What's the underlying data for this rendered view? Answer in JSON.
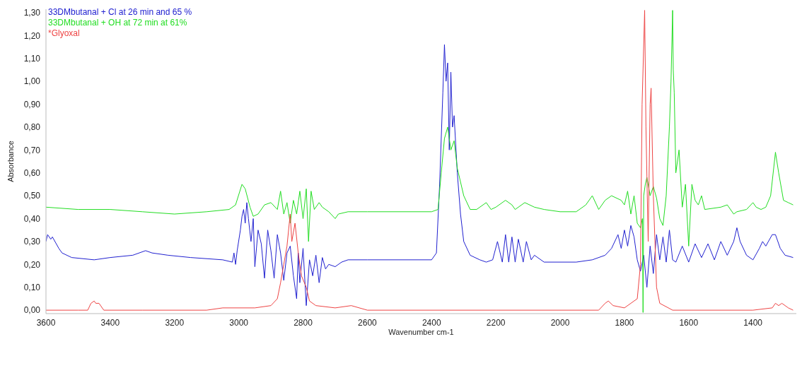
{
  "chart_data": {
    "type": "line",
    "xlabel": "Wavenumber cm-1",
    "ylabel": "Absorbance",
    "legend": "top left",
    "grid": false,
    "marker": "none",
    "line_style": "solid",
    "xlim": [
      3600,
      1265
    ],
    "xticks": [
      3600,
      3400,
      3200,
      3000,
      2800,
      2600,
      2400,
      2200,
      2000,
      1800,
      1600,
      1400
    ],
    "ylim": [
      -0.015,
      1.315
    ],
    "yticks": [
      {
        "value": 0,
        "label": "0,00"
      },
      {
        "value": 0.1,
        "label": "0,10"
      },
      {
        "value": 0.2,
        "label": "0,20"
      },
      {
        "value": 0.3,
        "label": "0,30"
      },
      {
        "value": 0.4,
        "label": "0,40"
      },
      {
        "value": 0.5,
        "label": "0,50"
      },
      {
        "value": 0.6,
        "label": "0,60"
      },
      {
        "value": 0.7,
        "label": "0,70"
      },
      {
        "value": 0.8,
        "label": "0,80"
      },
      {
        "value": 0.9,
        "label": "0,90"
      },
      {
        "value": 1.0,
        "label": "1,00"
      },
      {
        "value": 1.1,
        "label": "1,10"
      },
      {
        "value": 1.2,
        "label": "1,20"
      },
      {
        "value": 1.3,
        "label": "1,30"
      }
    ],
    "series": [
      {
        "name": "33DMbutanal + Cl at 26 min and 65 %",
        "color": "#2020d0",
        "x": [
          3600,
          3595,
          3585,
          3580,
          3560,
          3550,
          3520,
          3450,
          3400,
          3330,
          3290,
          3270,
          3220,
          3150,
          3050,
          3020,
          3015,
          3010,
          3005,
          2995,
          2990,
          2985,
          2980,
          2975,
          2970,
          2962,
          2955,
          2950,
          2940,
          2930,
          2920,
          2910,
          2900,
          2890,
          2880,
          2870,
          2860,
          2850,
          2840,
          2830,
          2820,
          2815,
          2810,
          2800,
          2790,
          2780,
          2770,
          2760,
          2750,
          2740,
          2730,
          2720,
          2700,
          2680,
          2660,
          2600,
          2400,
          2385,
          2375,
          2365,
          2360,
          2355,
          2350,
          2345,
          2340,
          2335,
          2330,
          2320,
          2310,
          2300,
          2280,
          2250,
          2230,
          2210,
          2195,
          2180,
          2170,
          2160,
          2150,
          2140,
          2130,
          2115,
          2105,
          2090,
          2080,
          2050,
          1950,
          1900,
          1860,
          1840,
          1820,
          1810,
          1800,
          1790,
          1780,
          1770,
          1760,
          1750,
          1740,
          1730,
          1720,
          1710,
          1700,
          1690,
          1680,
          1670,
          1660,
          1650,
          1640,
          1620,
          1600,
          1580,
          1560,
          1540,
          1520,
          1500,
          1480,
          1460,
          1450,
          1440,
          1420,
          1400,
          1380,
          1370,
          1360,
          1340,
          1330,
          1315,
          1300,
          1275
        ],
        "values": [
          0.3,
          0.33,
          0.31,
          0.32,
          0.27,
          0.25,
          0.23,
          0.22,
          0.23,
          0.24,
          0.26,
          0.25,
          0.24,
          0.23,
          0.22,
          0.21,
          0.25,
          0.2,
          0.26,
          0.35,
          0.41,
          0.44,
          0.38,
          0.47,
          0.4,
          0.3,
          0.4,
          0.19,
          0.35,
          0.29,
          0.14,
          0.35,
          0.26,
          0.14,
          0.33,
          0.25,
          0.13,
          0.25,
          0.28,
          0.15,
          0.05,
          0.25,
          0.12,
          0.27,
          0.02,
          0.22,
          0.15,
          0.24,
          0.12,
          0.23,
          0.18,
          0.2,
          0.19,
          0.21,
          0.22,
          0.22,
          0.22,
          0.25,
          0.55,
          0.95,
          1.16,
          1.0,
          1.08,
          0.7,
          1.04,
          0.8,
          0.85,
          0.6,
          0.42,
          0.3,
          0.24,
          0.22,
          0.21,
          0.22,
          0.3,
          0.21,
          0.33,
          0.21,
          0.32,
          0.21,
          0.31,
          0.21,
          0.3,
          0.22,
          0.24,
          0.21,
          0.21,
          0.22,
          0.24,
          0.27,
          0.33,
          0.27,
          0.35,
          0.28,
          0.37,
          0.32,
          0.22,
          0.17,
          0.24,
          0.1,
          0.28,
          0.16,
          0.33,
          0.22,
          0.32,
          0.21,
          0.35,
          0.22,
          0.21,
          0.28,
          0.21,
          0.29,
          0.23,
          0.29,
          0.22,
          0.3,
          0.24,
          0.3,
          0.36,
          0.3,
          0.24,
          0.22,
          0.27,
          0.3,
          0.28,
          0.33,
          0.33,
          0.27,
          0.24,
          0.23
        ]
      },
      {
        "name": "33DMbutanal + OH at 72 min at 61%",
        "color": "#22dd22",
        "x": [
          3600,
          3500,
          3400,
          3300,
          3200,
          3100,
          3030,
          3010,
          2990,
          2980,
          2965,
          2955,
          2940,
          2920,
          2900,
          2880,
          2870,
          2860,
          2850,
          2840,
          2830,
          2820,
          2810,
          2800,
          2790,
          2783,
          2775,
          2765,
          2750,
          2740,
          2720,
          2700,
          2690,
          2660,
          2600,
          2400,
          2380,
          2370,
          2360,
          2350,
          2340,
          2330,
          2320,
          2300,
          2280,
          2260,
          2230,
          2215,
          2200,
          2170,
          2150,
          2140,
          2110,
          2080,
          2050,
          2000,
          1950,
          1920,
          1900,
          1880,
          1860,
          1840,
          1810,
          1800,
          1790,
          1780,
          1770,
          1760,
          1750,
          1744,
          1742,
          1740,
          1735,
          1730,
          1720,
          1710,
          1700,
          1690,
          1680,
          1670,
          1660,
          1655,
          1650,
          1648,
          1645,
          1640,
          1630,
          1620,
          1610,
          1600,
          1590,
          1580,
          1570,
          1560,
          1550,
          1500,
          1480,
          1460,
          1450,
          1420,
          1400,
          1390,
          1375,
          1360,
          1345,
          1330,
          1320,
          1305,
          1290,
          1275
        ],
        "values": [
          0.45,
          0.44,
          0.44,
          0.43,
          0.42,
          0.43,
          0.44,
          0.46,
          0.55,
          0.53,
          0.45,
          0.41,
          0.42,
          0.46,
          0.47,
          0.44,
          0.52,
          0.42,
          0.47,
          0.38,
          0.48,
          0.42,
          0.52,
          0.4,
          0.53,
          0.3,
          0.52,
          0.44,
          0.47,
          0.45,
          0.43,
          0.4,
          0.42,
          0.43,
          0.43,
          0.43,
          0.44,
          0.6,
          0.75,
          0.8,
          0.7,
          0.74,
          0.62,
          0.5,
          0.44,
          0.44,
          0.47,
          0.44,
          0.45,
          0.48,
          0.46,
          0.44,
          0.47,
          0.45,
          0.44,
          0.43,
          0.43,
          0.46,
          0.5,
          0.44,
          0.48,
          0.5,
          0.48,
          0.46,
          0.52,
          0.42,
          0.5,
          0.38,
          0.36,
          0.4,
          -0.01,
          0.5,
          0.55,
          0.58,
          0.5,
          0.54,
          0.49,
          0.4,
          0.37,
          0.5,
          0.8,
          1.0,
          1.31,
          1.05,
          0.95,
          0.6,
          0.7,
          0.45,
          0.55,
          0.28,
          0.55,
          0.48,
          0.46,
          0.5,
          0.44,
          0.45,
          0.46,
          0.42,
          0.43,
          0.44,
          0.47,
          0.45,
          0.44,
          0.45,
          0.5,
          0.69,
          0.6,
          0.48,
          0.47,
          0.46
        ]
      },
      {
        "name": "*Glyoxal",
        "color": "#ee4444",
        "x": [
          3600,
          3500,
          3470,
          3460,
          3450,
          3445,
          3435,
          3420,
          3300,
          3100,
          3050,
          2950,
          2900,
          2880,
          2870,
          2860,
          2850,
          2840,
          2835,
          2825,
          2815,
          2805,
          2790,
          2780,
          2760,
          2700,
          2650,
          2600,
          2200,
          1880,
          1860,
          1850,
          1835,
          1800,
          1760,
          1750,
          1745,
          1737,
          1733,
          1726,
          1720,
          1717,
          1710,
          1700,
          1690,
          1650,
          1400,
          1340,
          1330,
          1320,
          1310,
          1290,
          1275
        ],
        "values": [
          0.0,
          0.0,
          0.0,
          0.03,
          0.04,
          0.03,
          0.03,
          0.0,
          0.0,
          0.0,
          0.01,
          0.01,
          0.02,
          0.05,
          0.12,
          0.2,
          0.28,
          0.42,
          0.3,
          0.38,
          0.25,
          0.15,
          0.1,
          0.04,
          0.02,
          0.01,
          0.02,
          0.0,
          0.0,
          0.0,
          0.03,
          0.04,
          0.02,
          0.01,
          0.05,
          0.2,
          0.9,
          1.31,
          0.8,
          0.3,
          0.9,
          0.97,
          0.5,
          0.1,
          0.03,
          0.0,
          0.0,
          0.01,
          0.03,
          0.02,
          0.03,
          0.01,
          0.0
        ]
      }
    ]
  }
}
